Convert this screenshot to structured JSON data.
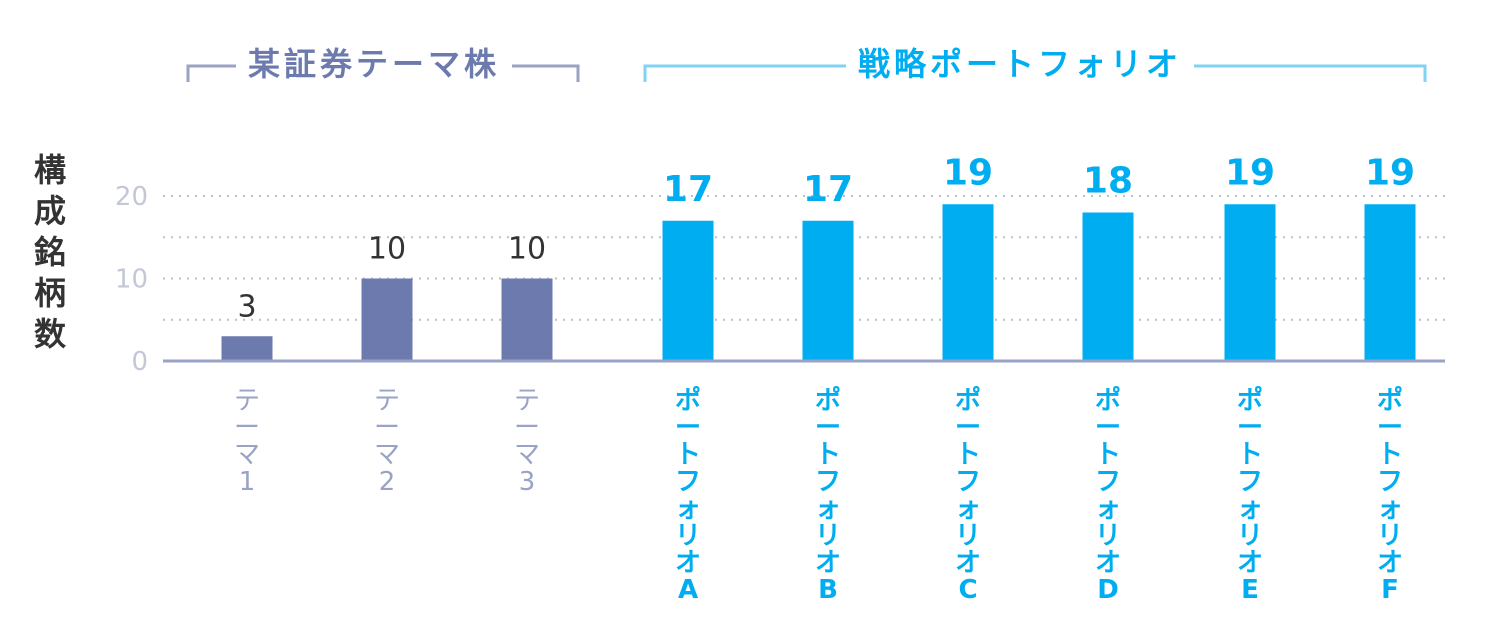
{
  "chart_data": {
    "type": "bar",
    "group_labels": [
      "某証券テーマ株",
      "戦略ポートフォリオ"
    ],
    "ylabel": "構成銘柄数",
    "categories": [
      "テーマ1",
      "テーマ2",
      "テーマ3",
      "ポートフォリオA",
      "ポートフォリオB",
      "ポートフォリオC",
      "ポートフォリオD",
      "ポートフォリオE",
      "ポートフォリオF"
    ],
    "values": [
      3,
      10,
      10,
      17,
      17,
      19,
      18,
      19,
      19
    ],
    "data_labels": [
      "3",
      "10",
      "10",
      "17",
      "17",
      "19",
      "18",
      "19",
      "19"
    ],
    "groups": [
      "theme",
      "theme",
      "theme",
      "strategy",
      "strategy",
      "strategy",
      "strategy",
      "strategy",
      "strategy"
    ],
    "ylim": [
      0,
      20
    ],
    "yticks": [
      0,
      10,
      20
    ],
    "grid": true,
    "colors": {
      "theme": "#6d7aae",
      "strategy": "#00adf1",
      "axis": "#9aa3c5",
      "grid": "#b9bfd6",
      "tick_label": "#c3c7d6"
    }
  }
}
